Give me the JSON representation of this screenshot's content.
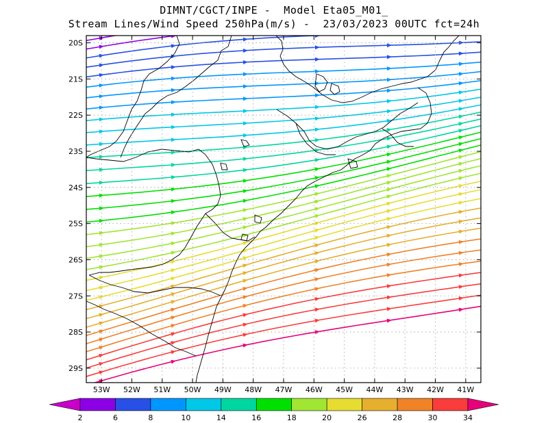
{
  "title": {
    "line1": "DIMNT/CGCT/INPE -  Model Eta05_M01_",
    "line2": "Stream Lines/Wind Speed 250hPa(m/s) -  23/03/2023 00UTC fct=24h"
  },
  "axes": {
    "lat_labels": [
      "20S",
      "21S",
      "22S",
      "23S",
      "24S",
      "25S",
      "26S",
      "27S",
      "28S",
      "29S"
    ],
    "lon_labels": [
      "53W",
      "52W",
      "51W",
      "50W",
      "49W",
      "48W",
      "47W",
      "46W",
      "45W",
      "44W",
      "43W",
      "42W",
      "41W"
    ]
  },
  "colorbar": {
    "labels": [
      "2",
      "6",
      "8",
      "10",
      "14",
      "16",
      "18",
      "20",
      "26",
      "28",
      "30",
      "34"
    ],
    "colors": [
      "#c800c8",
      "#8c00e6",
      "#2850e6",
      "#0096ff",
      "#00c8e6",
      "#00d6a0",
      "#00e000",
      "#a0e632",
      "#e6dc32",
      "#e6af2d",
      "#f08228",
      "#fa3c3c",
      "#e6007a"
    ]
  },
  "map": {
    "coastline_color": "#000000",
    "grid_color": "#9a9a9a",
    "lon_range": [
      -53.5,
      -40.5
    ],
    "lat_range": [
      -29.4,
      -19.8
    ]
  }
}
